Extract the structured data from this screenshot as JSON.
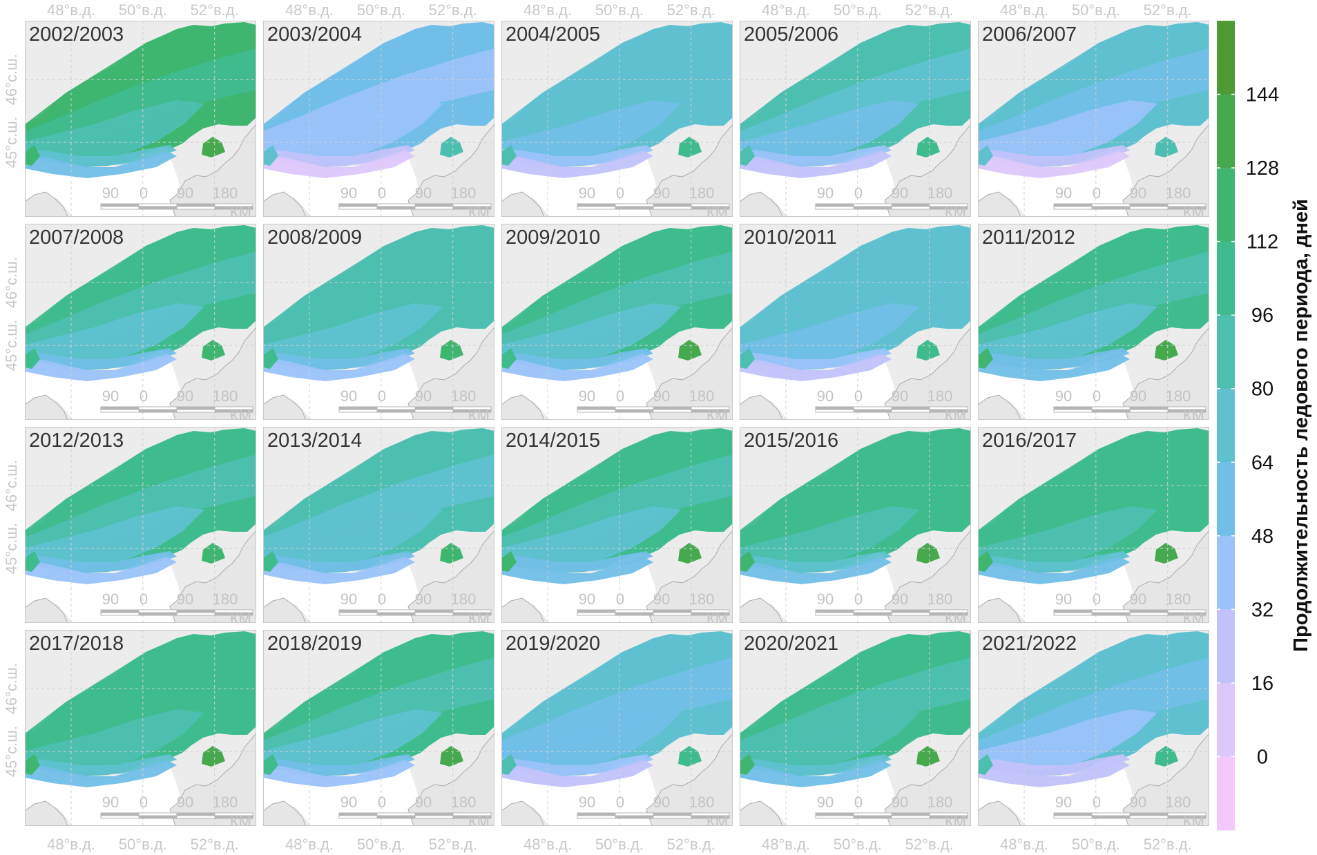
{
  "panels": [
    {
      "label": "2002/2003",
      "level": 4.6
    },
    {
      "label": "2003/2004",
      "level": 1.2
    },
    {
      "label": "2004/2005",
      "level": 2.4
    },
    {
      "label": "2005/2006",
      "level": 2.6
    },
    {
      "label": "2006/2007",
      "level": 1.6
    },
    {
      "label": "2007/2008",
      "level": 3.6
    },
    {
      "label": "2008/2009",
      "level": 3.4
    },
    {
      "label": "2009/2010",
      "level": 3.8
    },
    {
      "label": "2010/2011",
      "level": 2.4
    },
    {
      "label": "2011/2012",
      "level": 4.0
    },
    {
      "label": "2012/2013",
      "level": 3.6
    },
    {
      "label": "2013/2014",
      "level": 3.2
    },
    {
      "label": "2014/2015",
      "level": 4.0
    },
    {
      "label": "2015/2016",
      "level": 4.4
    },
    {
      "label": "2016/2017",
      "level": 4.4
    },
    {
      "label": "2017/2018",
      "level": 4.4
    },
    {
      "label": "2018/2019",
      "level": 3.8
    },
    {
      "label": "2019/2020",
      "level": 2.2
    },
    {
      "label": "2020/2021",
      "level": 4.2
    },
    {
      "label": "2021/2022",
      "level": 2.0
    }
  ],
  "axes": {
    "x_ticks": [
      "48°в.д.",
      "50°в.д.",
      "52°в.д."
    ],
    "y_ticks": [
      "46°с.ш.",
      "45°с.ш."
    ]
  },
  "scalebar": {
    "labels": [
      "90",
      "0",
      "90",
      "180"
    ],
    "unit": "КМ"
  },
  "legend": {
    "title": "Продолжительность ледового периода, дней",
    "ticks": [
      "144",
      "128",
      "112",
      "96",
      "80",
      "64",
      "48",
      "32",
      "16",
      "0"
    ],
    "colors": [
      "#f3c8fb",
      "#dcc8fb",
      "#c1c2fb",
      "#99c3fa",
      "#71bfe8",
      "#5fc1d0",
      "#4dbfb0",
      "#3fbc8e",
      "#3fb670",
      "#46a94e",
      "#4f9a32"
    ]
  },
  "colors": {
    "panel_bg": "#ececec",
    "panel_border": "#c8c8c8",
    "sea_white": "#ffffff",
    "coast": "#aaaaaa"
  }
}
